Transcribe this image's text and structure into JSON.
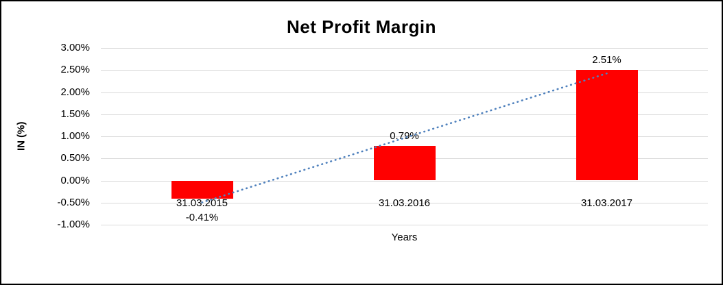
{
  "chart_data": {
    "type": "bar",
    "title": "Net Profit Margin",
    "xlabel": "Years",
    "ylabel": "IN (%)",
    "categories": [
      "31.03.2015",
      "31.03.2016",
      "31.03.2017"
    ],
    "values": [
      -0.41,
      0.79,
      2.51
    ],
    "data_labels": [
      "-0.41%",
      "0.79%",
      "2.51%"
    ],
    "ylim": [
      -1.0,
      3.0
    ],
    "ytick_step": 0.5,
    "yticks": [
      "3.00%",
      "2.50%",
      "2.00%",
      "1.50%",
      "1.00%",
      "0.50%",
      "0.00%",
      "-0.50%",
      "-1.00%"
    ],
    "bar_color": "#ff0000",
    "grid": true,
    "legend": false,
    "trendline": {
      "type": "linear",
      "color": "#4f81bd",
      "style": "dotted"
    }
  }
}
